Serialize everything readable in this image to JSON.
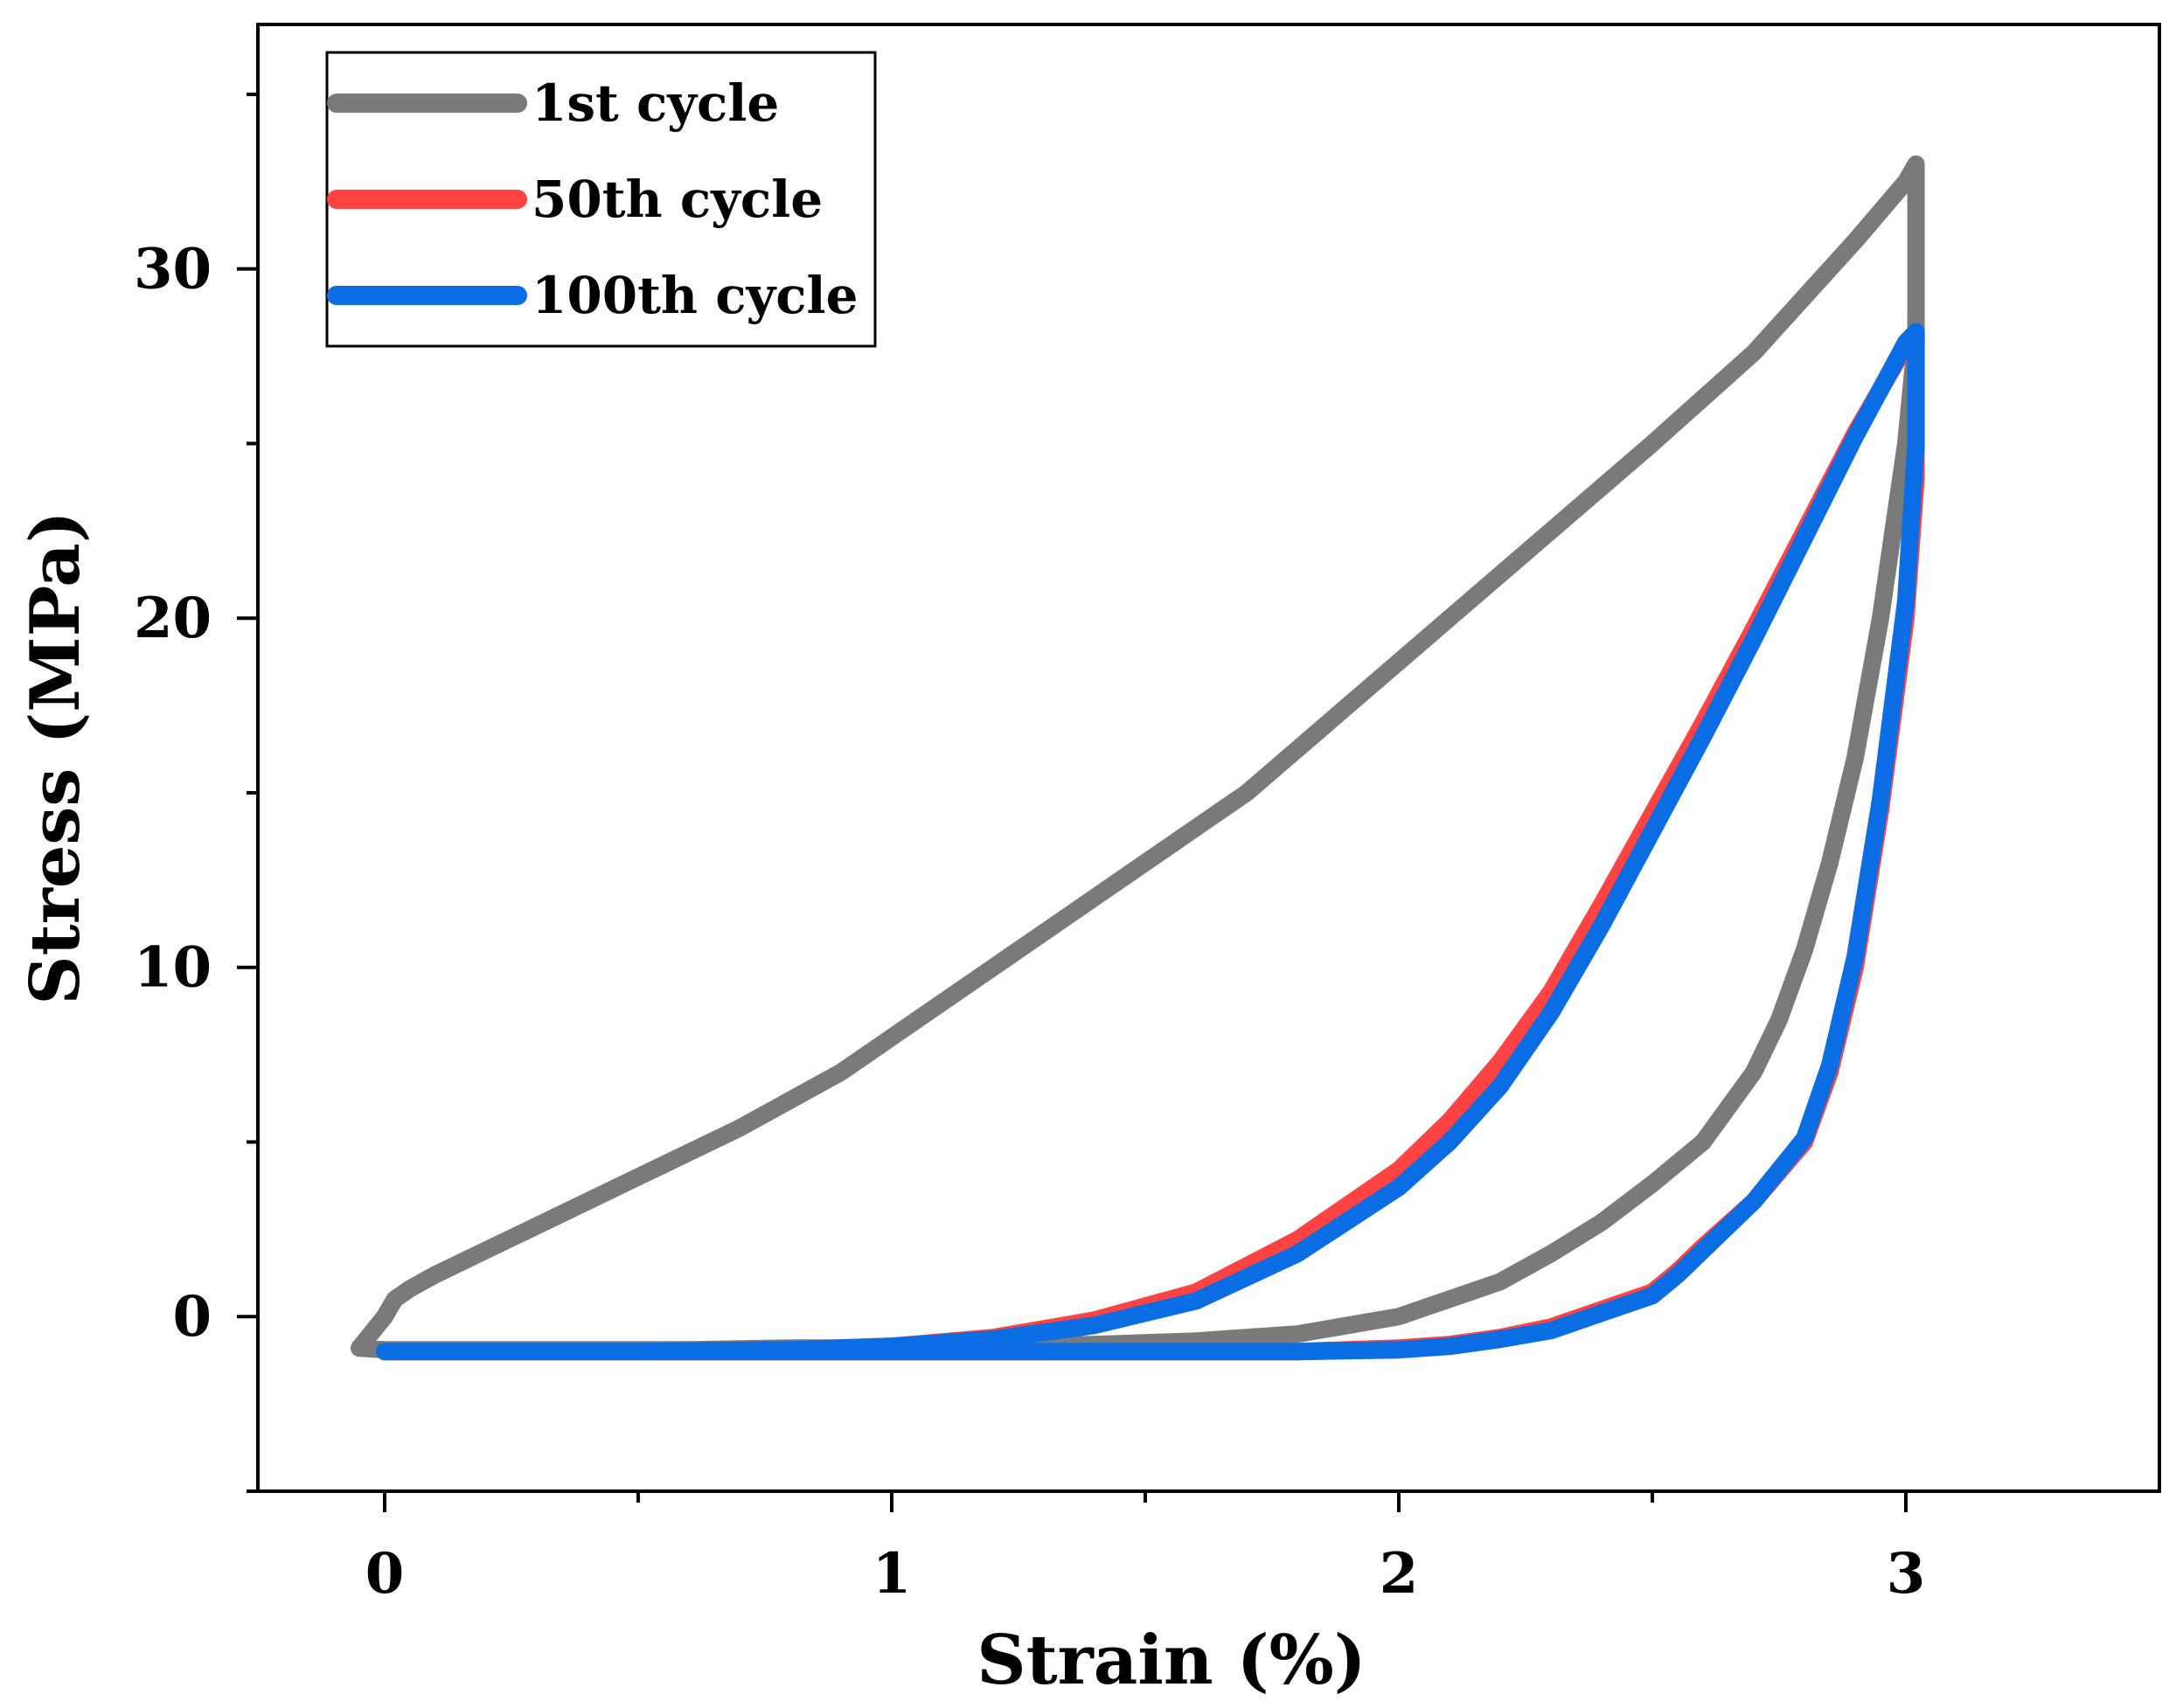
{
  "chart_data": {
    "type": "line",
    "title": "",
    "xlabel": "Strain (%)",
    "ylabel": "Stress (MPa)",
    "xlim": [
      -0.25,
      3.5
    ],
    "ylim": [
      -5,
      37
    ],
    "x_major_ticks": [
      0,
      1,
      2,
      3
    ],
    "x_minor_ticks": [
      0.5,
      1.5,
      2.5
    ],
    "y_major_ticks": [
      0,
      10,
      20,
      30
    ],
    "y_minor_ticks": [
      -5,
      5,
      15,
      25,
      35
    ],
    "x_tick_labels": [
      "0",
      "1",
      "2",
      "3"
    ],
    "y_tick_labels": [
      "0",
      "10",
      "20",
      "30"
    ],
    "grid": false,
    "legend_position": "top-left",
    "series": [
      {
        "name": "1st cycle",
        "color": "#7a7a7a",
        "x": [
          -0.05,
          0.0,
          0.02,
          0.05,
          0.1,
          0.2,
          0.3,
          0.5,
          0.7,
          0.9,
          1.1,
          1.3,
          1.5,
          1.7,
          1.9,
          2.1,
          2.3,
          2.5,
          2.6,
          2.7,
          2.8,
          2.9,
          3.0,
          3.02,
          3.02,
          3.0,
          2.95,
          2.9,
          2.85,
          2.8,
          2.75,
          2.7,
          2.6,
          2.5,
          2.4,
          2.3,
          2.2,
          2.0,
          1.8,
          1.6,
          1.4,
          1.2,
          1.0,
          0.8,
          0.6,
          0.4,
          0.2,
          0.0,
          -0.05
        ],
        "y": [
          -0.9,
          0.0,
          0.5,
          0.8,
          1.2,
          1.9,
          2.6,
          4.0,
          5.4,
          7.0,
          9.0,
          11.0,
          13.0,
          15.0,
          17.5,
          20.0,
          22.5,
          25.0,
          26.3,
          27.6,
          29.2,
          30.8,
          32.5,
          33.0,
          28.0,
          25.0,
          20.0,
          16.0,
          13.0,
          10.5,
          8.5,
          7.0,
          5.0,
          3.8,
          2.7,
          1.8,
          1.0,
          0.0,
          -0.5,
          -0.7,
          -0.8,
          -0.85,
          -0.9,
          -0.9,
          -0.95,
          -0.95,
          -0.95,
          -0.95,
          -0.9
        ]
      },
      {
        "name": "50th cycle",
        "color": "#ff4343",
        "x": [
          0.0,
          0.2,
          0.5,
          0.8,
          1.0,
          1.2,
          1.4,
          1.6,
          1.8,
          2.0,
          2.1,
          2.2,
          2.3,
          2.4,
          2.5,
          2.6,
          2.7,
          2.8,
          2.9,
          3.0,
          3.02,
          3.02,
          3.0,
          2.95,
          2.9,
          2.85,
          2.8,
          2.7,
          2.6,
          2.55,
          2.5,
          2.4,
          2.3,
          2.2,
          2.1,
          2.0,
          1.8,
          1.5,
          1.0,
          0.5,
          0.0
        ],
        "y": [
          -1.0,
          -1.0,
          -1.0,
          -0.95,
          -0.85,
          -0.6,
          -0.1,
          0.7,
          2.2,
          4.2,
          5.6,
          7.3,
          9.3,
          11.8,
          14.4,
          17.0,
          19.7,
          22.5,
          25.3,
          27.8,
          28.0,
          24.0,
          20.0,
          14.5,
          10.0,
          7.0,
          5.0,
          3.3,
          2.0,
          1.3,
          0.7,
          0.2,
          -0.3,
          -0.6,
          -0.8,
          -0.9,
          -1.0,
          -1.0,
          -1.0,
          -1.0,
          -1.0
        ]
      },
      {
        "name": "100th cycle",
        "color": "#0a6de4",
        "x": [
          0.0,
          0.2,
          0.5,
          0.8,
          1.0,
          1.2,
          1.4,
          1.6,
          1.8,
          2.0,
          2.1,
          2.2,
          2.3,
          2.4,
          2.5,
          2.6,
          2.7,
          2.8,
          2.9,
          3.0,
          3.02,
          3.02,
          3.0,
          2.95,
          2.9,
          2.85,
          2.8,
          2.7,
          2.6,
          2.55,
          2.5,
          2.4,
          2.3,
          2.2,
          2.1,
          2.0,
          1.8,
          1.5,
          1.0,
          0.5,
          0.0
        ],
        "y": [
          -1.0,
          -1.0,
          -1.0,
          -0.95,
          -0.85,
          -0.65,
          -0.25,
          0.45,
          1.8,
          3.7,
          5.0,
          6.6,
          8.7,
          11.2,
          13.9,
          16.6,
          19.4,
          22.3,
          25.2,
          27.9,
          28.2,
          25.0,
          20.5,
          14.8,
          10.3,
          7.2,
          5.1,
          3.3,
          1.9,
          1.2,
          0.6,
          0.1,
          -0.4,
          -0.65,
          -0.85,
          -0.95,
          -1.0,
          -1.0,
          -1.0,
          -1.0,
          -1.0
        ]
      }
    ]
  }
}
